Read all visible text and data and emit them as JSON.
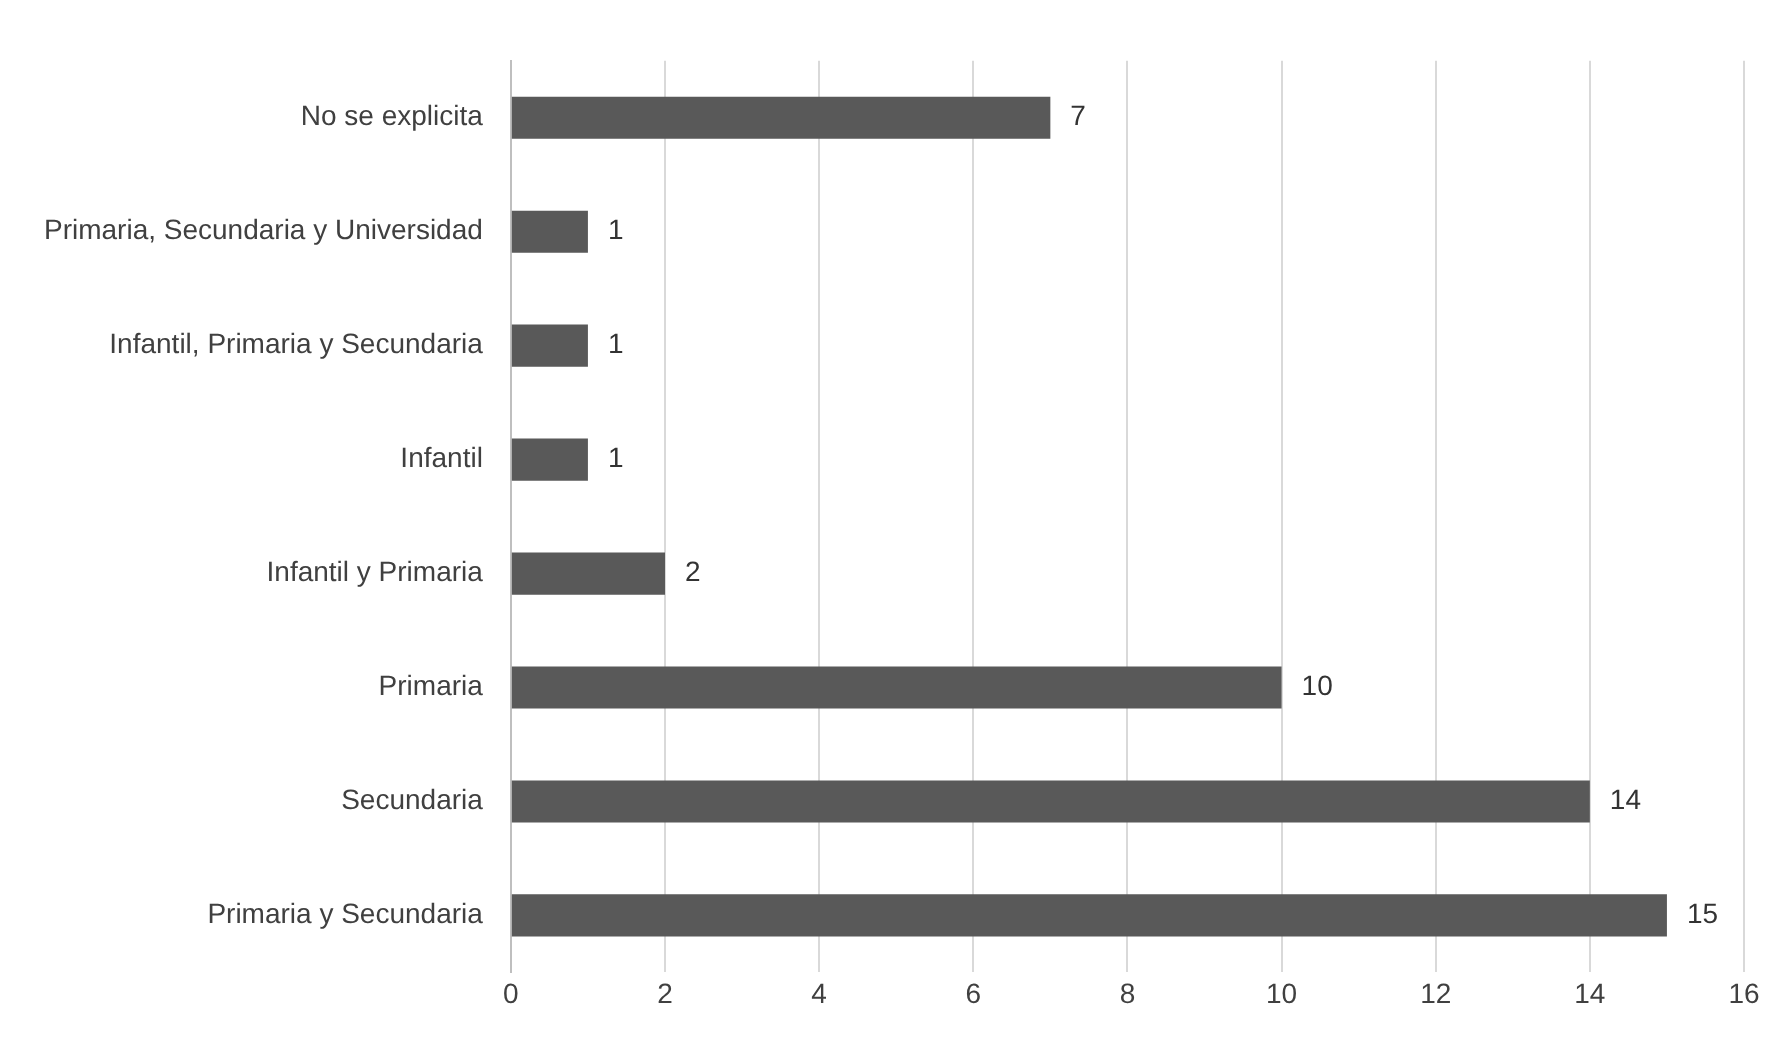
{
  "chart_data": {
    "type": "bar",
    "orientation": "horizontal",
    "categories": [
      "No se explicita",
      "Primaria, Secundaria y Universidad",
      "Infantil, Primaria y Secundaria",
      "Infantil",
      "Infantil y Primaria",
      "Primaria",
      "Secundaria",
      "Primaria y Secundaria"
    ],
    "values": [
      7,
      1,
      1,
      1,
      2,
      10,
      14,
      15
    ],
    "color": "#595959",
    "xlim": [
      0,
      16
    ],
    "xticks": [
      0,
      2,
      4,
      6,
      8,
      10,
      12,
      14,
      16
    ],
    "grid": "x",
    "data_labels": true,
    "legend": false
  }
}
